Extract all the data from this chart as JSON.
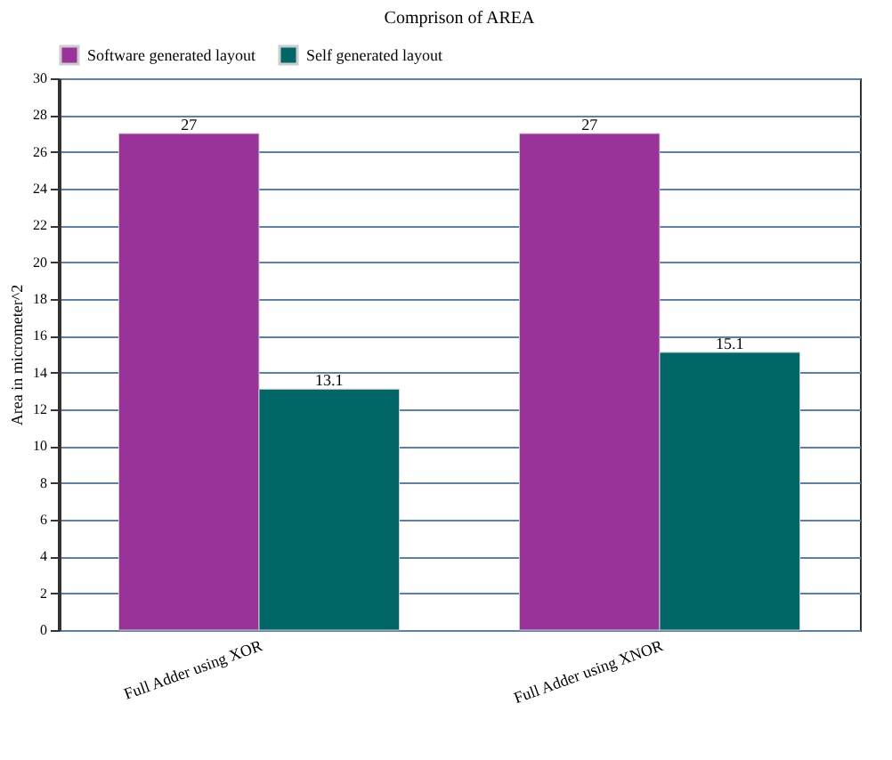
{
  "chart_data": {
    "type": "bar",
    "title": "Comprison of AREA",
    "ylabel": "Area in micrometer^2",
    "categories": [
      "Full Adder using XOR",
      "Full Adder using XNOR"
    ],
    "series": [
      {
        "name": "Software generated layout",
        "color": "#993399",
        "values": [
          27,
          27
        ]
      },
      {
        "name": "Self generated layout",
        "color": "#006666",
        "values": [
          13.1,
          15.1
        ]
      }
    ],
    "ylim": [
      0,
      30
    ],
    "yticks": [
      0,
      2,
      4,
      6,
      8,
      10,
      12,
      14,
      16,
      18,
      20,
      22,
      24,
      26,
      28,
      30
    ],
    "grid": "y",
    "legend": "top left",
    "data_labels": true
  }
}
